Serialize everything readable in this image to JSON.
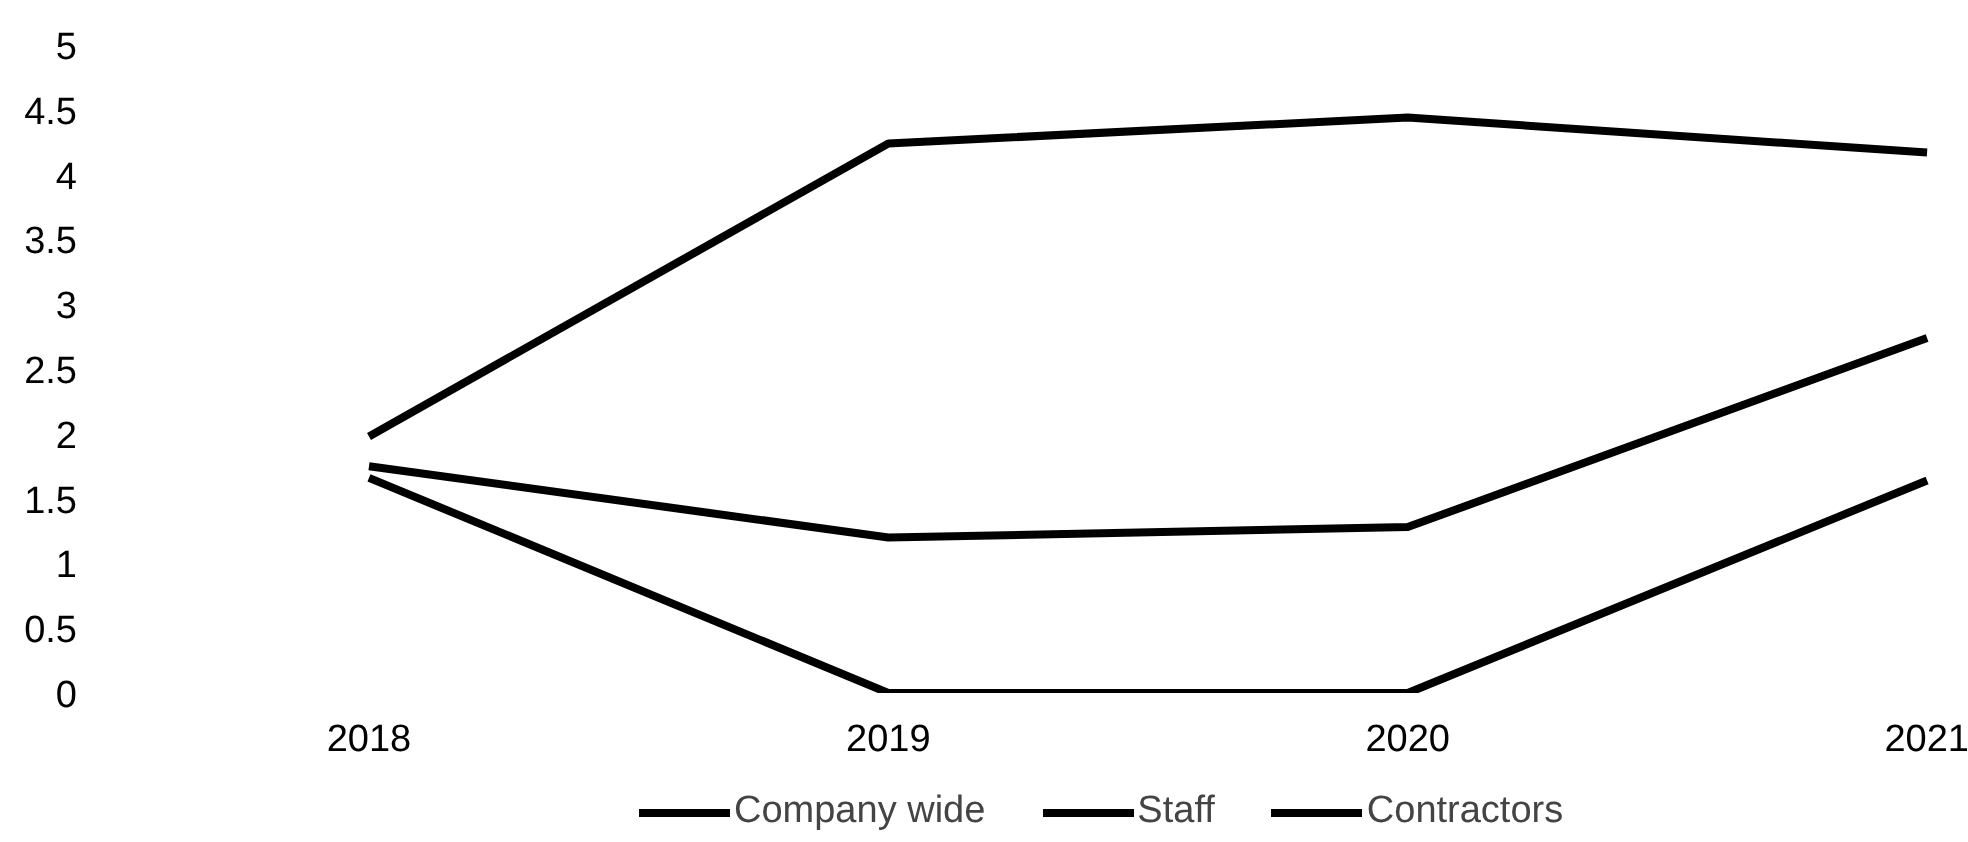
{
  "chart_data": {
    "type": "line",
    "categories": [
      "2018",
      "2019",
      "2020",
      "2021"
    ],
    "series": [
      {
        "name": "Company wide",
        "color": "#000000",
        "values": [
          1.75,
          1.2,
          1.28,
          2.74
        ]
      },
      {
        "name": "Staff",
        "color": "#000000",
        "values": [
          1.66,
          0,
          0,
          1.64
        ]
      },
      {
        "name": "Contractors",
        "color": "#000000",
        "values": [
          1.98,
          4.24,
          4.44,
          4.17
        ]
      }
    ],
    "ylim": [
      0,
      5
    ],
    "yticks": [
      0,
      0.5,
      1,
      1.5,
      2,
      2.5,
      3,
      3.5,
      4,
      4.5,
      5
    ],
    "grid": false,
    "legend": "bottom",
    "line_style": "solid"
  }
}
